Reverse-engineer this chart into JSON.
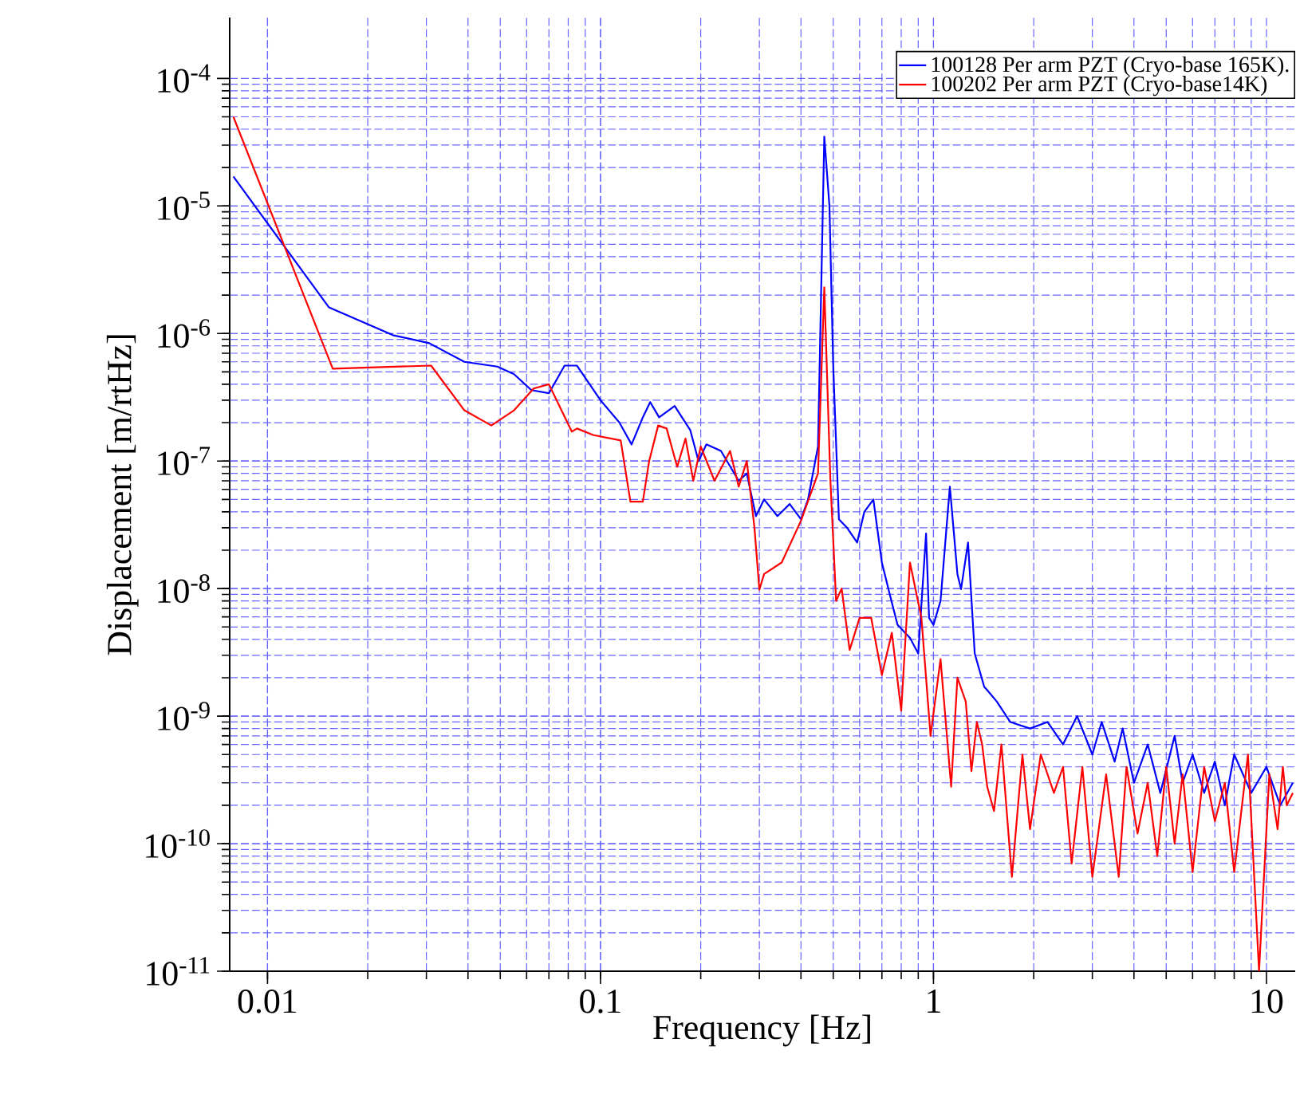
{
  "chart_data": {
    "type": "line",
    "xlabel": "Frequency [Hz]",
    "ylabel": "Displacement [m/rtHz]",
    "log": "xy",
    "grid": true,
    "legend": "top right",
    "line_style": "solid",
    "marker": "none",
    "xlim": [
      0.0077,
      12.2
    ],
    "ylim": [
      1e-11,
      0.0003
    ],
    "xticks": [
      0.01,
      0.1,
      1,
      10
    ],
    "yticks": [
      {
        "value": 1e-11,
        "label": "10$^{-11}$"
      },
      {
        "value": 1e-10,
        "label": "10$^{-10}$"
      },
      {
        "value": 1e-09,
        "label": "10$^{-9}$"
      },
      {
        "value": 1e-08,
        "label": "10$^{-8}$"
      },
      {
        "value": 1e-07,
        "label": "10$^{-7}$"
      },
      {
        "value": 1e-06,
        "label": "10$^{-6}$"
      },
      {
        "value": 1e-05,
        "label": "10$^{-5}$"
      },
      {
        "value": 0.0001,
        "label": "10$^{-4}$"
      }
    ],
    "series": [
      {
        "name": "100128 Per arm PZT (Cryo-base 165K).",
        "color": "#0000ff",
        "x": [
          0.0079,
          0.0153,
          0.0238,
          0.0306,
          0.039,
          0.049,
          0.055,
          0.062,
          0.07,
          0.078,
          0.085,
          0.1,
          0.114,
          0.124,
          0.134,
          0.141,
          0.15,
          0.167,
          0.186,
          0.197,
          0.208,
          0.23,
          0.26,
          0.275,
          0.293,
          0.31,
          0.34,
          0.37,
          0.4,
          0.42,
          0.45,
          0.47,
          0.487,
          0.5,
          0.52,
          0.55,
          0.59,
          0.62,
          0.66,
          0.7,
          0.74,
          0.78,
          0.85,
          0.9,
          0.95,
          0.97,
          1.0,
          1.05,
          1.12,
          1.18,
          1.21,
          1.27,
          1.33,
          1.42,
          1.45,
          1.55,
          1.7,
          1.95,
          2.2,
          2.45,
          2.7,
          3.0,
          3.2,
          3.5,
          3.7,
          4.0,
          4.4,
          4.8,
          5.3,
          5.6,
          6.0,
          6.5,
          7.0,
          7.5,
          8.0,
          9.0,
          10.0,
          11.0,
          12.0
        ],
        "values": [
          1.7e-05,
          1.6e-06,
          9.7e-07,
          8.4e-07,
          6e-07,
          5.5e-07,
          4.8e-07,
          3.6e-07,
          3.4e-07,
          5.6e-07,
          5.6e-07,
          3e-07,
          2e-07,
          1.35e-07,
          2.2e-07,
          2.9e-07,
          2.2e-07,
          2.7e-07,
          1.75e-07,
          1e-07,
          1.35e-07,
          1.2e-07,
          7e-08,
          8e-08,
          3.7e-08,
          5e-08,
          3.7e-08,
          4.6e-08,
          3.5e-08,
          5e-08,
          1.3e-07,
          3.5e-05,
          1e-05,
          5.5e-07,
          3.5e-08,
          3e-08,
          2.3e-08,
          4e-08,
          5e-08,
          1.6e-08,
          8.9e-09,
          5.2e-09,
          4.1e-09,
          3.1e-09,
          2.7e-08,
          5.9e-09,
          5.2e-09,
          8e-09,
          6.3e-08,
          1.3e-08,
          9.9e-09,
          2.3e-08,
          3.1e-09,
          1.7e-09,
          1.6e-09,
          1.3e-09,
          9e-10,
          8e-10,
          9e-10,
          6e-10,
          1e-09,
          5e-10,
          9e-10,
          4.4e-10,
          8e-10,
          3e-10,
          6e-10,
          2.5e-10,
          7e-10,
          3e-10,
          5e-10,
          2.5e-10,
          4.4e-10,
          2e-10,
          5e-10,
          2.5e-10,
          4e-10,
          2e-10,
          3e-10
        ]
      },
      {
        "name": "100202 Per arm PZT (Cryo-base14K)",
        "color": "#ff0000",
        "x": [
          0.0079,
          0.0157,
          0.031,
          0.039,
          0.047,
          0.055,
          0.063,
          0.07,
          0.082,
          0.085,
          0.095,
          0.115,
          0.123,
          0.134,
          0.14,
          0.149,
          0.158,
          0.17,
          0.18,
          0.19,
          0.2,
          0.22,
          0.245,
          0.26,
          0.275,
          0.29,
          0.3,
          0.31,
          0.35,
          0.4,
          0.45,
          0.47,
          0.49,
          0.51,
          0.53,
          0.56,
          0.6,
          0.65,
          0.7,
          0.75,
          0.8,
          0.85,
          0.92,
          0.98,
          1.05,
          1.13,
          1.18,
          1.25,
          1.3,
          1.35,
          1.4,
          1.45,
          1.52,
          1.6,
          1.72,
          1.85,
          1.95,
          2.1,
          2.3,
          2.45,
          2.6,
          2.8,
          3.0,
          3.3,
          3.6,
          3.8,
          4.1,
          4.4,
          4.7,
          5.0,
          5.3,
          5.6,
          6.0,
          6.5,
          7.0,
          7.5,
          8.0,
          8.8,
          9.5,
          10.2,
          10.8,
          11.2,
          11.5,
          12.0
        ],
        "values": [
          5e-05,
          5.3e-07,
          5.6e-07,
          2.5e-07,
          1.9e-07,
          2.5e-07,
          3.7e-07,
          4e-07,
          1.7e-07,
          1.8e-07,
          1.6e-07,
          1.45e-07,
          4.8e-08,
          4.8e-08,
          1e-07,
          1.9e-07,
          1.8e-07,
          9e-08,
          1.5e-07,
          7e-08,
          1.3e-07,
          7e-08,
          1.2e-07,
          6.3e-08,
          1e-07,
          3e-08,
          9.8e-09,
          1.3e-08,
          1.6e-08,
          3.4e-08,
          8e-08,
          2.3e-06,
          7.3e-08,
          8e-09,
          1e-08,
          3.3e-09,
          5.9e-09,
          5.9e-09,
          2.1e-09,
          4.5e-09,
          1.1e-09,
          1.6e-08,
          5.9e-09,
          7e-10,
          2.8e-09,
          2.8e-10,
          2e-09,
          1.3e-09,
          3.7e-10,
          9e-10,
          6e-10,
          2.8e-10,
          1.8e-10,
          6e-10,
          5.5e-11,
          5e-10,
          1.3e-10,
          5e-10,
          2.5e-10,
          4e-10,
          7e-11,
          4e-10,
          5.5e-11,
          3.5e-10,
          5.5e-11,
          4e-10,
          1.2e-10,
          3e-10,
          8e-11,
          4e-10,
          1e-10,
          3.5e-10,
          6e-11,
          4e-10,
          1.5e-10,
          3e-10,
          6e-11,
          5e-10,
          1e-11,
          3.5e-10,
          1.3e-10,
          4e-10,
          2e-10,
          2.5e-10
        ]
      }
    ]
  }
}
